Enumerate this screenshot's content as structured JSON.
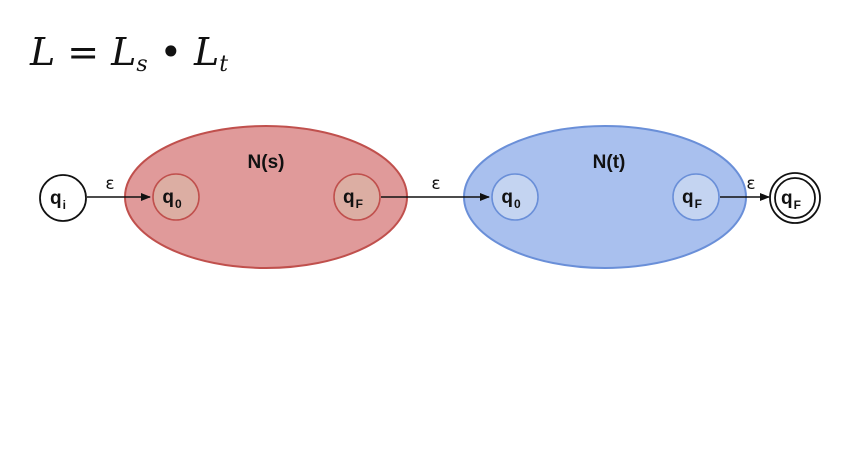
{
  "formula": {
    "lhs": "L",
    "eq": "=",
    "left_factor": "L",
    "left_sub": "s",
    "op": "•",
    "right_factor": "L",
    "right_sub": "t"
  },
  "groups": {
    "ns": {
      "label": "N(s)",
      "fill": "#e09a9a",
      "stroke": "#c0504d"
    },
    "nt": {
      "label": "N(t)",
      "fill": "#a9c0ee",
      "stroke": "#6a8fd8"
    }
  },
  "states": {
    "qi": {
      "label": "q",
      "sub": "i"
    },
    "s_q0": {
      "label": "q",
      "sub": "0"
    },
    "s_qf": {
      "label": "q",
      "sub": "F"
    },
    "t_q0": {
      "label": "q",
      "sub": "0"
    },
    "t_qf": {
      "label": "q",
      "sub": "F"
    },
    "qf_final": {
      "label": "q",
      "sub": "F"
    }
  },
  "edges": {
    "e1": "ε",
    "e2": "ε",
    "e3": "ε"
  }
}
